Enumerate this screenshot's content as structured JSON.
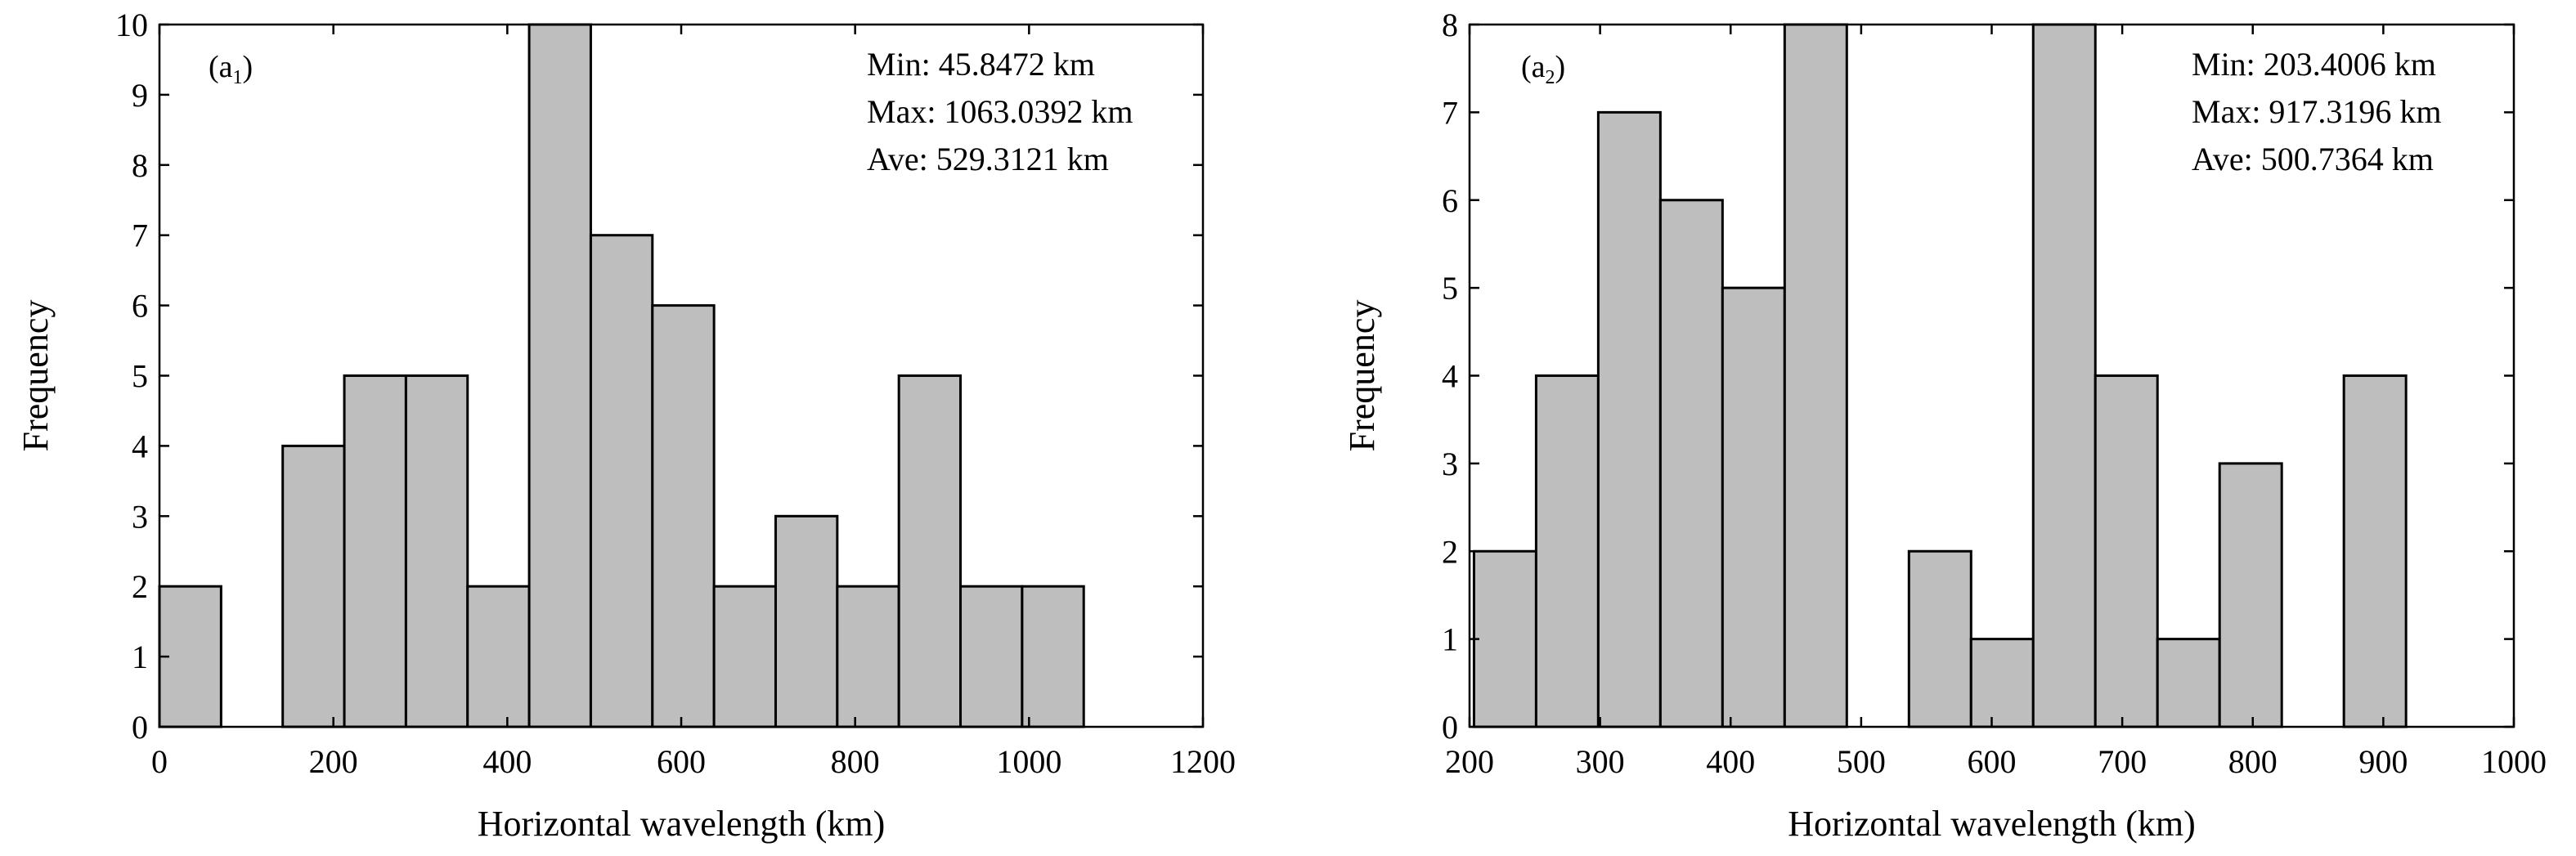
{
  "chart_data": [
    {
      "type": "bar",
      "panel": "(a1)",
      "panel_letter": "a",
      "panel_sub": "1",
      "xlabel": "Horizontal wavelength (km)",
      "ylabel": "Frequency",
      "xlim": [
        0,
        1200
      ],
      "ylim": [
        0,
        10
      ],
      "xticks": [
        0,
        200,
        400,
        600,
        800,
        1000,
        1200
      ],
      "yticks": [
        0,
        1,
        2,
        3,
        4,
        5,
        6,
        7,
        8,
        9,
        10
      ],
      "bin_width": 70.86,
      "bins": [
        {
          "start": 0,
          "end": 70.86,
          "value": 2
        },
        {
          "start": 70.86,
          "end": 141.72,
          "value": 0
        },
        {
          "start": 141.72,
          "end": 212.58,
          "value": 4
        },
        {
          "start": 212.58,
          "end": 283.44,
          "value": 5
        },
        {
          "start": 283.44,
          "end": 354.3,
          "value": 5
        },
        {
          "start": 354.3,
          "end": 425.16,
          "value": 2
        },
        {
          "start": 425.16,
          "end": 496.02,
          "value": 10
        },
        {
          "start": 496.02,
          "end": 566.88,
          "value": 7
        },
        {
          "start": 566.88,
          "end": 637.74,
          "value": 6
        },
        {
          "start": 637.74,
          "end": 708.6,
          "value": 2
        },
        {
          "start": 708.6,
          "end": 779.46,
          "value": 3
        },
        {
          "start": 779.46,
          "end": 850.32,
          "value": 2
        },
        {
          "start": 850.32,
          "end": 921.18,
          "value": 5
        },
        {
          "start": 921.18,
          "end": 992.04,
          "value": 2
        },
        {
          "start": 992.04,
          "end": 1062.9,
          "value": 2
        }
      ],
      "annotations": [
        "Min: 45.8472 km",
        "Max: 1063.0392 km",
        "Ave: 529.3121 km"
      ],
      "bar_color": "#bebebe",
      "edge_color": "#000000"
    },
    {
      "type": "bar",
      "panel": "(a2)",
      "panel_letter": "a",
      "panel_sub": "2",
      "xlabel": "Horizontal wavelength (km)",
      "ylabel": "Frequency",
      "xlim": [
        200,
        1000
      ],
      "ylim": [
        0,
        8
      ],
      "xticks": [
        200,
        300,
        400,
        500,
        600,
        700,
        800,
        900,
        1000
      ],
      "yticks": [
        0,
        1,
        2,
        3,
        4,
        5,
        6,
        7,
        8
      ],
      "bin_width": 47.6,
      "bins": [
        {
          "start": 203.4,
          "end": 251.0,
          "value": 2
        },
        {
          "start": 251.0,
          "end": 298.6,
          "value": 4
        },
        {
          "start": 298.6,
          "end": 346.2,
          "value": 7
        },
        {
          "start": 346.2,
          "end": 393.8,
          "value": 6
        },
        {
          "start": 393.8,
          "end": 441.4,
          "value": 5
        },
        {
          "start": 441.4,
          "end": 489.0,
          "value": 8
        },
        {
          "start": 489.0,
          "end": 536.6,
          "value": 0
        },
        {
          "start": 536.6,
          "end": 584.2,
          "value": 2
        },
        {
          "start": 584.2,
          "end": 631.8,
          "value": 1
        },
        {
          "start": 631.8,
          "end": 679.4,
          "value": 8
        },
        {
          "start": 679.4,
          "end": 727.0,
          "value": 4
        },
        {
          "start": 727.0,
          "end": 774.6,
          "value": 1
        },
        {
          "start": 774.6,
          "end": 822.2,
          "value": 3
        },
        {
          "start": 822.2,
          "end": 869.8,
          "value": 0
        },
        {
          "start": 869.8,
          "end": 917.4,
          "value": 4
        }
      ],
      "annotations": [
        "Min: 203.4006 km",
        "Max: 917.3196 km",
        "Ave: 500.7364 km"
      ],
      "bar_color": "#bebebe",
      "edge_color": "#000000"
    }
  ]
}
